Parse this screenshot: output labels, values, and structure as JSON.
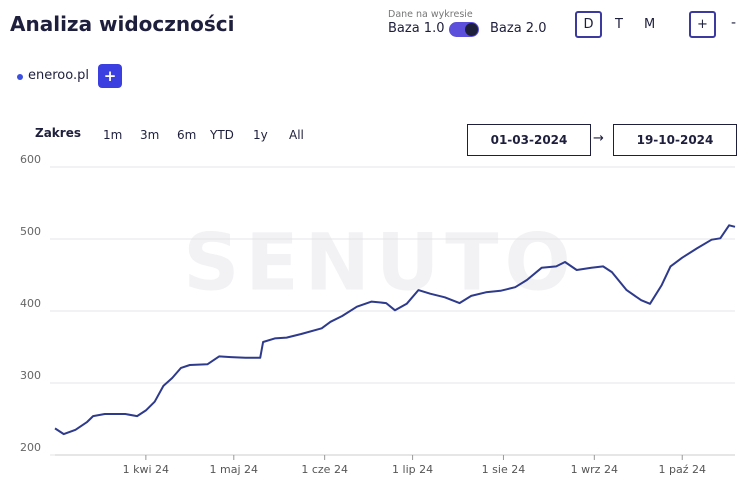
{
  "header": {
    "title": "Analiza widoczności",
    "data_source_label": "Dane na wykresie",
    "base_left": "Baza 1.0",
    "base_right": "Baza 2.0",
    "granularity": [
      "D",
      "T",
      "M"
    ],
    "zoom_in": "+",
    "zoom_out": "-"
  },
  "domains": {
    "items": [
      "eneroo.pl"
    ],
    "add": "+"
  },
  "range": {
    "label": "Zakres",
    "options": [
      "1m",
      "3m",
      "6m",
      "YTD",
      "1y",
      "All"
    ],
    "from": "01-03-2024",
    "arrow": "→",
    "to": "19-10-2024"
  },
  "watermark": "SENUTO",
  "chart_data": {
    "type": "line",
    "x": [
      "2024-03-01",
      "2024-03-04",
      "2024-03-08",
      "2024-03-12",
      "2024-03-14",
      "2024-03-18",
      "2024-03-25",
      "2024-03-29",
      "2024-04-01",
      "2024-04-04",
      "2024-04-07",
      "2024-04-10",
      "2024-04-13",
      "2024-04-16",
      "2024-04-22",
      "2024-04-26",
      "2024-04-30",
      "2024-05-05",
      "2024-05-10",
      "2024-05-11",
      "2024-05-15",
      "2024-05-19",
      "2024-05-24",
      "2024-05-31",
      "2024-06-03",
      "2024-06-07",
      "2024-06-12",
      "2024-06-17",
      "2024-06-22",
      "2024-06-25",
      "2024-06-29",
      "2024-07-03",
      "2024-07-07",
      "2024-07-12",
      "2024-07-17",
      "2024-07-21",
      "2024-07-26",
      "2024-07-31",
      "2024-08-05",
      "2024-08-09",
      "2024-08-14",
      "2024-08-19",
      "2024-08-22",
      "2024-08-26",
      "2024-08-31",
      "2024-09-04",
      "2024-09-07",
      "2024-09-12",
      "2024-09-17",
      "2024-09-20",
      "2024-09-24",
      "2024-09-27",
      "2024-10-01",
      "2024-10-06",
      "2024-10-11",
      "2024-10-14",
      "2024-10-17",
      "2024-10-19"
    ],
    "series": [
      {
        "name": "eneroo.pl",
        "color": "#2e3a8c",
        "values": [
          237,
          229,
          235,
          246,
          254,
          257,
          257,
          254,
          262,
          274,
          296,
          307,
          321,
          325,
          326,
          337,
          336,
          335,
          335,
          357,
          362,
          363,
          368,
          376,
          385,
          393,
          406,
          413,
          411,
          401,
          410,
          429,
          424,
          419,
          411,
          421,
          426,
          428,
          433,
          443,
          460,
          462,
          468,
          457,
          460,
          462,
          454,
          429,
          415,
          410,
          436,
          462,
          474,
          487,
          499,
          501,
          519,
          517
        ]
      }
    ],
    "xlim": [
      "2024-03-01",
      "2024-10-19"
    ],
    "xticks": [
      {
        "value": "2024-04-01",
        "label": "1 kwi 24"
      },
      {
        "value": "2024-05-01",
        "label": "1 maj 24"
      },
      {
        "value": "2024-06-01",
        "label": "1 cze 24"
      },
      {
        "value": "2024-07-01",
        "label": "1 lip 24"
      },
      {
        "value": "2024-08-01",
        "label": "1 sie 24"
      },
      {
        "value": "2024-09-01",
        "label": "1 wrz 24"
      },
      {
        "value": "2024-10-01",
        "label": "1 paź 24"
      }
    ],
    "ylim": [
      200,
      600
    ],
    "yticks": [
      200,
      300,
      400,
      500,
      600
    ],
    "grid": true
  }
}
